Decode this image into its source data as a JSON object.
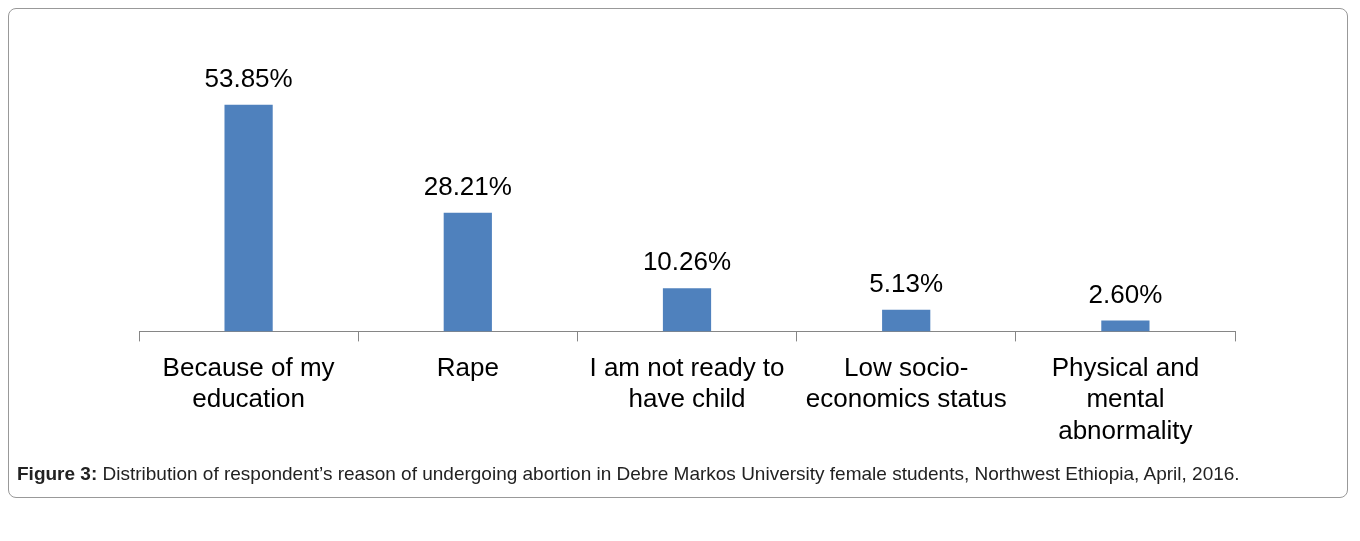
{
  "chart_data": {
    "type": "bar",
    "categories": [
      "Because of my education",
      "Rape",
      "I am not ready to have child",
      "Low socio-economics status",
      "Physical and mental abnormality"
    ],
    "values": [
      53.85,
      28.21,
      10.26,
      5.13,
      2.6
    ],
    "value_labels": [
      "53.85%",
      "28.21%",
      "10.26%",
      "5.13%",
      "2.60%"
    ],
    "color": "#4f81bd",
    "tick_labels": "x",
    "grid": false,
    "legend": false,
    "annotations": [
      "Figure 3: Distribution of respondent’s reason of undergoing abortion in Debre Markos University female students, Northwest Ethiopia, April, 2016."
    ]
  }
}
